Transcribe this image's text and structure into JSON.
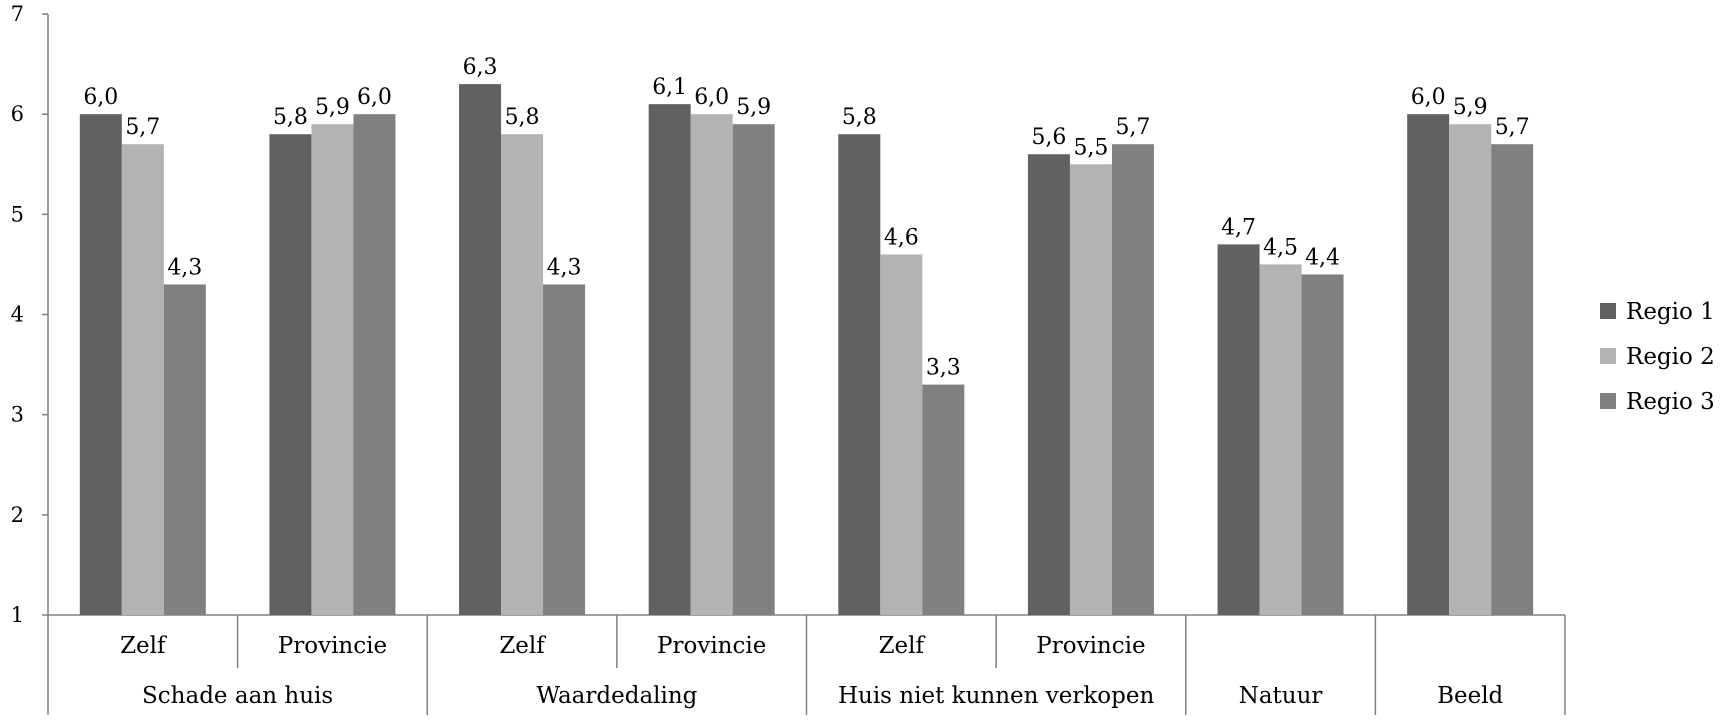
{
  "chart_data": {
    "type": "bar",
    "title": "",
    "xlabel": "",
    "ylabel": "",
    "ylim": [
      1,
      7
    ],
    "yticks": [
      1,
      2,
      3,
      4,
      5,
      6,
      7
    ],
    "grid": false,
    "legend_position": "right",
    "groups": [
      {
        "label": "Schade aan huis",
        "categories": [
          "Zelf",
          "Provincie"
        ]
      },
      {
        "label": "Waardedaling",
        "categories": [
          "Zelf",
          "Provincie"
        ]
      },
      {
        "label": "Huis niet kunnen verkopen",
        "categories": [
          "Zelf",
          "Provincie"
        ]
      },
      {
        "label": "Natuur",
        "categories": [
          ""
        ]
      },
      {
        "label": "Beeld",
        "categories": [
          ""
        ]
      }
    ],
    "series": [
      {
        "name": "Regio 1",
        "color": "#616161",
        "values": [
          6.0,
          5.8,
          6.3,
          6.1,
          5.8,
          5.6,
          4.7,
          6.0
        ],
        "labels": [
          "6,0",
          "5,8",
          "6,3",
          "6,1",
          "5,8",
          "5,6",
          "4,7",
          "6,0"
        ]
      },
      {
        "name": "Regio 2",
        "color": "#b3b3b3",
        "values": [
          5.7,
          5.9,
          5.8,
          6.0,
          4.6,
          5.5,
          4.5,
          5.9
        ],
        "labels": [
          "5,7",
          "5,9",
          "5,8",
          "6,0",
          "4,6",
          "5,5",
          "4,5",
          "5,9"
        ]
      },
      {
        "name": "Regio 3",
        "color": "#808080",
        "values": [
          4.3,
          6.0,
          4.3,
          5.9,
          3.3,
          5.7,
          4.4,
          5.7
        ],
        "labels": [
          "4,3",
          "6,0",
          "4,3",
          "5,9",
          "3,3",
          "5,7",
          "4,4",
          "5,7"
        ]
      }
    ]
  }
}
